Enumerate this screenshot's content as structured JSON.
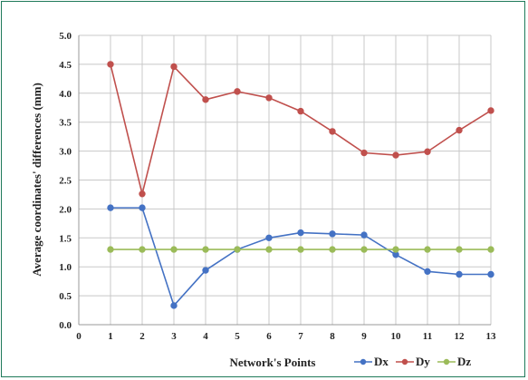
{
  "chart_data": {
    "type": "line",
    "title": "",
    "xlabel": "Network's Points",
    "ylabel": "Average coordinates' differences (mm)",
    "x_ticks": [
      "0",
      "1",
      "2",
      "3",
      "4",
      "5",
      "6",
      "7",
      "8",
      "9",
      "10",
      "11",
      "12",
      "13"
    ],
    "y_ticks": [
      "0.0",
      "0.5",
      "1.0",
      "1.5",
      "2.0",
      "2.5",
      "3.0",
      "3.5",
      "4.0",
      "4.5",
      "5.0"
    ],
    "xlim": [
      0,
      13
    ],
    "ylim": [
      0,
      5
    ],
    "grid": true,
    "legend_position": "bottom-right",
    "x": [
      1,
      2,
      3,
      4,
      5,
      6,
      7,
      8,
      9,
      10,
      11,
      12,
      13
    ],
    "series": [
      {
        "name": "Dx",
        "color": "#4472c4",
        "values": [
          2.02,
          2.02,
          0.33,
          0.94,
          1.3,
          1.5,
          1.59,
          1.57,
          1.55,
          1.21,
          0.92,
          0.87,
          0.87
        ]
      },
      {
        "name": "Dy",
        "color": "#c0504d",
        "values": [
          4.5,
          2.26,
          4.46,
          3.89,
          4.03,
          3.92,
          3.69,
          3.34,
          2.97,
          2.93,
          2.99,
          3.36,
          3.7
        ]
      },
      {
        "name": "Dz",
        "color": "#9bbb59",
        "values": [
          1.3,
          1.3,
          1.3,
          1.3,
          1.3,
          1.3,
          1.3,
          1.3,
          1.3,
          1.3,
          1.3,
          1.3,
          1.3
        ]
      }
    ]
  }
}
